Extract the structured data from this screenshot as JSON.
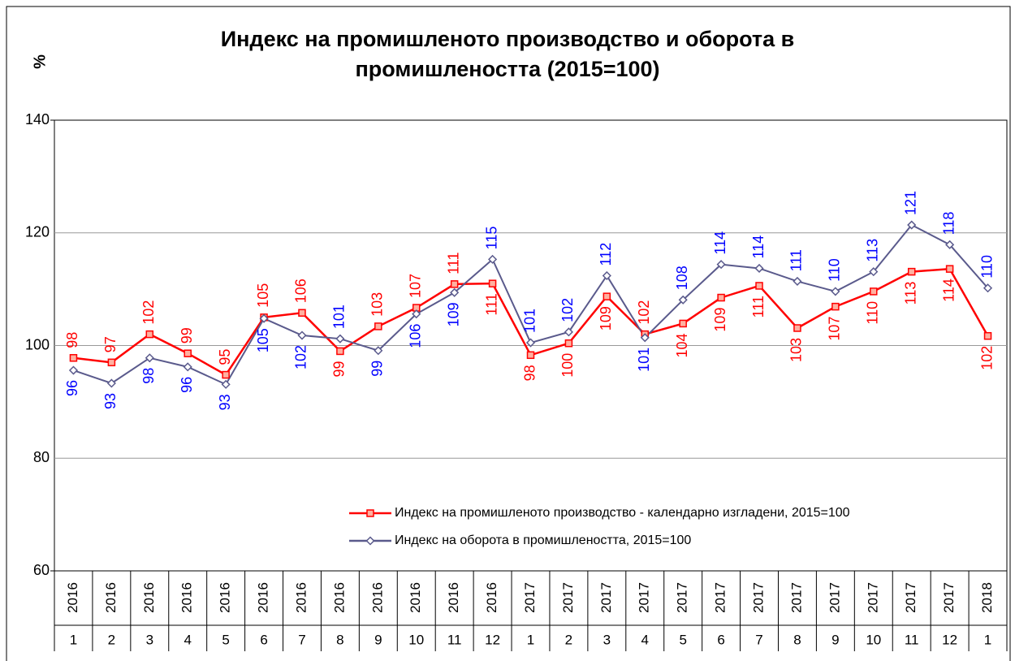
{
  "chart_data": {
    "type": "line",
    "title": [
      "Индекс на промишленото производство и оборота в",
      "промишлеността (2015=100)"
    ],
    "y_label": "%",
    "categories": [
      [
        "2016",
        "1"
      ],
      [
        "2016",
        "2"
      ],
      [
        "2016",
        "3"
      ],
      [
        "2016",
        "4"
      ],
      [
        "2016",
        "5"
      ],
      [
        "2016",
        "6"
      ],
      [
        "2016",
        "7"
      ],
      [
        "2016",
        "8"
      ],
      [
        "2016",
        "9"
      ],
      [
        "2016",
        "10"
      ],
      [
        "2016",
        "11"
      ],
      [
        "2016",
        "12"
      ],
      [
        "2017",
        "1"
      ],
      [
        "2017",
        "2"
      ],
      [
        "2017",
        "3"
      ],
      [
        "2017",
        "4"
      ],
      [
        "2017",
        "5"
      ],
      [
        "2017",
        "6"
      ],
      [
        "2017",
        "7"
      ],
      [
        "2017",
        "8"
      ],
      [
        "2017",
        "9"
      ],
      [
        "2017",
        "10"
      ],
      [
        "2017",
        "11"
      ],
      [
        "2017",
        "12"
      ],
      [
        "2018",
        "1"
      ]
    ],
    "series": [
      {
        "name": "Индекс на промишленото производство - календарно изгладени, 2015=100",
        "color": "#ff0000",
        "marker": "square",
        "label_color": "#ff0000",
        "values": [
          97.8,
          97.0,
          102.0,
          98.6,
          94.8,
          105.0,
          105.8,
          99.0,
          103.4,
          106.7,
          110.9,
          111.0,
          98.3,
          100.4,
          108.7,
          102.0,
          103.9,
          108.5,
          110.6,
          103.1,
          106.9,
          109.6,
          113.1,
          113.6,
          101.7
        ],
        "value_labels": [
          "98",
          "97",
          "102",
          "99",
          "95",
          "105",
          "106",
          "99",
          "103",
          "107",
          "111",
          "111",
          "98",
          "100",
          "109",
          "102",
          "104",
          "109",
          "111",
          "103",
          "107",
          "110",
          "113",
          "114",
          "102"
        ]
      },
      {
        "name": "Индекс на оборота в промишлеността, 2015=100",
        "color": "#5a5a8c",
        "marker": "diamond",
        "label_color": "#0000ff",
        "values": [
          95.6,
          93.3,
          97.8,
          96.2,
          93.1,
          104.8,
          101.8,
          101.2,
          99.1,
          105.6,
          109.4,
          115.3,
          100.5,
          102.4,
          112.4,
          101.4,
          108.1,
          114.4,
          113.7,
          111.4,
          109.6,
          113.1,
          121.4,
          117.9,
          110.2
        ],
        "value_labels": [
          "96",
          "93",
          "98",
          "96",
          "93",
          "105",
          "102",
          "101",
          "99",
          "106",
          "109",
          "115",
          "101",
          "102",
          "112",
          "101",
          "108",
          "114",
          "114",
          "111",
          "110",
          "113",
          "121",
          "118",
          "110"
        ]
      }
    ],
    "ylim": [
      60,
      140
    ],
    "yticks": [
      60,
      80,
      100,
      120,
      140
    ],
    "grid": true
  }
}
